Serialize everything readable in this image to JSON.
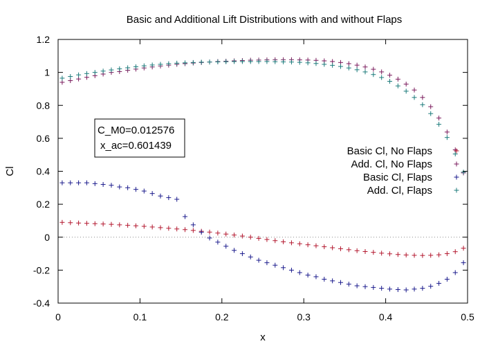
{
  "chart_data": {
    "type": "scatter",
    "title": "Basic and Additional Lift Distributions with and without Flaps",
    "xlabel": "x",
    "ylabel": "Cl",
    "xlim": [
      0,
      0.5
    ],
    "ylim": [
      -0.4,
      1.2
    ],
    "x_ticks": [
      "0",
      "0.1",
      "0.2",
      "0.3",
      "0.4",
      "0.5"
    ],
    "y_ticks": [
      "-0.4",
      "-0.2",
      "0",
      "0.2",
      "0.4",
      "0.6",
      "0.8",
      "1",
      "1.2"
    ],
    "grid": false,
    "zero_line": true,
    "legend_placement": "right",
    "annotation": [
      "C_M0=0.012576",
      "x_ac=0.601439"
    ],
    "marker": "+",
    "series": [
      {
        "name": "Basic Cl, No Flaps",
        "color": "#b3172e",
        "x": [
          0.005,
          0.015,
          0.025,
          0.035,
          0.045,
          0.055,
          0.065,
          0.075,
          0.085,
          0.095,
          0.105,
          0.115,
          0.125,
          0.135,
          0.145,
          0.155,
          0.165,
          0.175,
          0.185,
          0.195,
          0.205,
          0.215,
          0.225,
          0.235,
          0.245,
          0.255,
          0.265,
          0.275,
          0.285,
          0.295,
          0.305,
          0.315,
          0.325,
          0.335,
          0.345,
          0.355,
          0.365,
          0.375,
          0.385,
          0.395,
          0.405,
          0.415,
          0.425,
          0.435,
          0.445,
          0.455,
          0.465,
          0.475,
          0.485,
          0.495
        ],
        "y": [
          0.09,
          0.088,
          0.086,
          0.084,
          0.082,
          0.08,
          0.078,
          0.075,
          0.072,
          0.069,
          0.066,
          0.062,
          0.058,
          0.054,
          0.05,
          0.046,
          0.041,
          0.036,
          0.031,
          0.025,
          0.019,
          0.013,
          0.007,
          0.0,
          -0.007,
          -0.014,
          -0.021,
          -0.028,
          -0.034,
          -0.04,
          -0.046,
          -0.052,
          -0.058,
          -0.064,
          -0.07,
          -0.076,
          -0.082,
          -0.087,
          -0.092,
          -0.097,
          -0.101,
          -0.105,
          -0.108,
          -0.11,
          -0.111,
          -0.11,
          -0.107,
          -0.1,
          -0.088,
          -0.067
        ]
      },
      {
        "name": "Add. Cl, No Flaps",
        "color": "#7a1a5c",
        "x": [
          0.005,
          0.015,
          0.025,
          0.035,
          0.045,
          0.055,
          0.065,
          0.075,
          0.085,
          0.095,
          0.105,
          0.115,
          0.125,
          0.135,
          0.145,
          0.155,
          0.165,
          0.175,
          0.185,
          0.195,
          0.205,
          0.215,
          0.225,
          0.235,
          0.245,
          0.255,
          0.265,
          0.275,
          0.285,
          0.295,
          0.305,
          0.315,
          0.325,
          0.335,
          0.345,
          0.355,
          0.365,
          0.375,
          0.385,
          0.395,
          0.405,
          0.415,
          0.425,
          0.435,
          0.445,
          0.455,
          0.465,
          0.475,
          0.485,
          0.495
        ],
        "y": [
          0.94,
          0.95,
          0.96,
          0.97,
          0.98,
          0.99,
          1.0,
          1.005,
          1.013,
          1.02,
          1.027,
          1.033,
          1.039,
          1.044,
          1.049,
          1.053,
          1.057,
          1.06,
          1.063,
          1.066,
          1.068,
          1.07,
          1.072,
          1.074,
          1.075,
          1.076,
          1.077,
          1.077,
          1.077,
          1.076,
          1.075,
          1.073,
          1.07,
          1.066,
          1.06,
          1.053,
          1.044,
          1.033,
          1.019,
          1.003,
          0.983,
          0.959,
          0.929,
          0.893,
          0.848,
          0.792,
          0.723,
          0.638,
          0.53,
          0.39
        ]
      },
      {
        "name": "Basic Cl, Flaps",
        "color": "#1a1a8c",
        "x": [
          0.005,
          0.015,
          0.025,
          0.035,
          0.045,
          0.055,
          0.065,
          0.075,
          0.085,
          0.095,
          0.105,
          0.115,
          0.125,
          0.135,
          0.145,
          0.155,
          0.165,
          0.175,
          0.185,
          0.195,
          0.205,
          0.215,
          0.225,
          0.235,
          0.245,
          0.255,
          0.265,
          0.275,
          0.285,
          0.295,
          0.305,
          0.315,
          0.325,
          0.335,
          0.345,
          0.355,
          0.365,
          0.375,
          0.385,
          0.395,
          0.405,
          0.415,
          0.425,
          0.435,
          0.445,
          0.455,
          0.465,
          0.475,
          0.485,
          0.495
        ],
        "y": [
          0.33,
          0.33,
          0.33,
          0.33,
          0.325,
          0.32,
          0.315,
          0.305,
          0.3,
          0.29,
          0.28,
          0.265,
          0.25,
          0.24,
          0.23,
          0.125,
          0.075,
          0.03,
          -0.005,
          -0.03,
          -0.055,
          -0.08,
          -0.1,
          -0.12,
          -0.14,
          -0.155,
          -0.17,
          -0.185,
          -0.2,
          -0.215,
          -0.23,
          -0.24,
          -0.255,
          -0.265,
          -0.275,
          -0.285,
          -0.295,
          -0.3,
          -0.305,
          -0.31,
          -0.315,
          -0.318,
          -0.32,
          -0.315,
          -0.31,
          -0.298,
          -0.28,
          -0.255,
          -0.215,
          -0.155
        ]
      },
      {
        "name": "Add. Cl, Flaps",
        "color": "#1a7a7a",
        "x": [
          0.005,
          0.015,
          0.025,
          0.035,
          0.045,
          0.055,
          0.065,
          0.075,
          0.085,
          0.095,
          0.105,
          0.115,
          0.125,
          0.135,
          0.145,
          0.155,
          0.165,
          0.175,
          0.185,
          0.195,
          0.205,
          0.215,
          0.225,
          0.235,
          0.245,
          0.255,
          0.265,
          0.275,
          0.285,
          0.295,
          0.305,
          0.315,
          0.325,
          0.335,
          0.345,
          0.355,
          0.365,
          0.375,
          0.385,
          0.395,
          0.405,
          0.415,
          0.425,
          0.435,
          0.445,
          0.455,
          0.465,
          0.475,
          0.485,
          0.495
        ],
        "y": [
          0.965,
          0.975,
          0.985,
          0.993,
          1.0,
          1.008,
          1.015,
          1.022,
          1.028,
          1.034,
          1.04,
          1.045,
          1.049,
          1.053,
          1.056,
          1.058,
          1.06,
          1.062,
          1.063,
          1.064,
          1.065,
          1.066,
          1.066,
          1.066,
          1.066,
          1.066,
          1.065,
          1.064,
          1.063,
          1.061,
          1.058,
          1.054,
          1.049,
          1.043,
          1.036,
          1.027,
          1.016,
          1.003,
          0.987,
          0.969,
          0.946,
          0.918,
          0.886,
          0.848,
          0.804,
          0.75,
          0.685,
          0.605,
          0.505,
          0.395
        ]
      }
    ]
  }
}
